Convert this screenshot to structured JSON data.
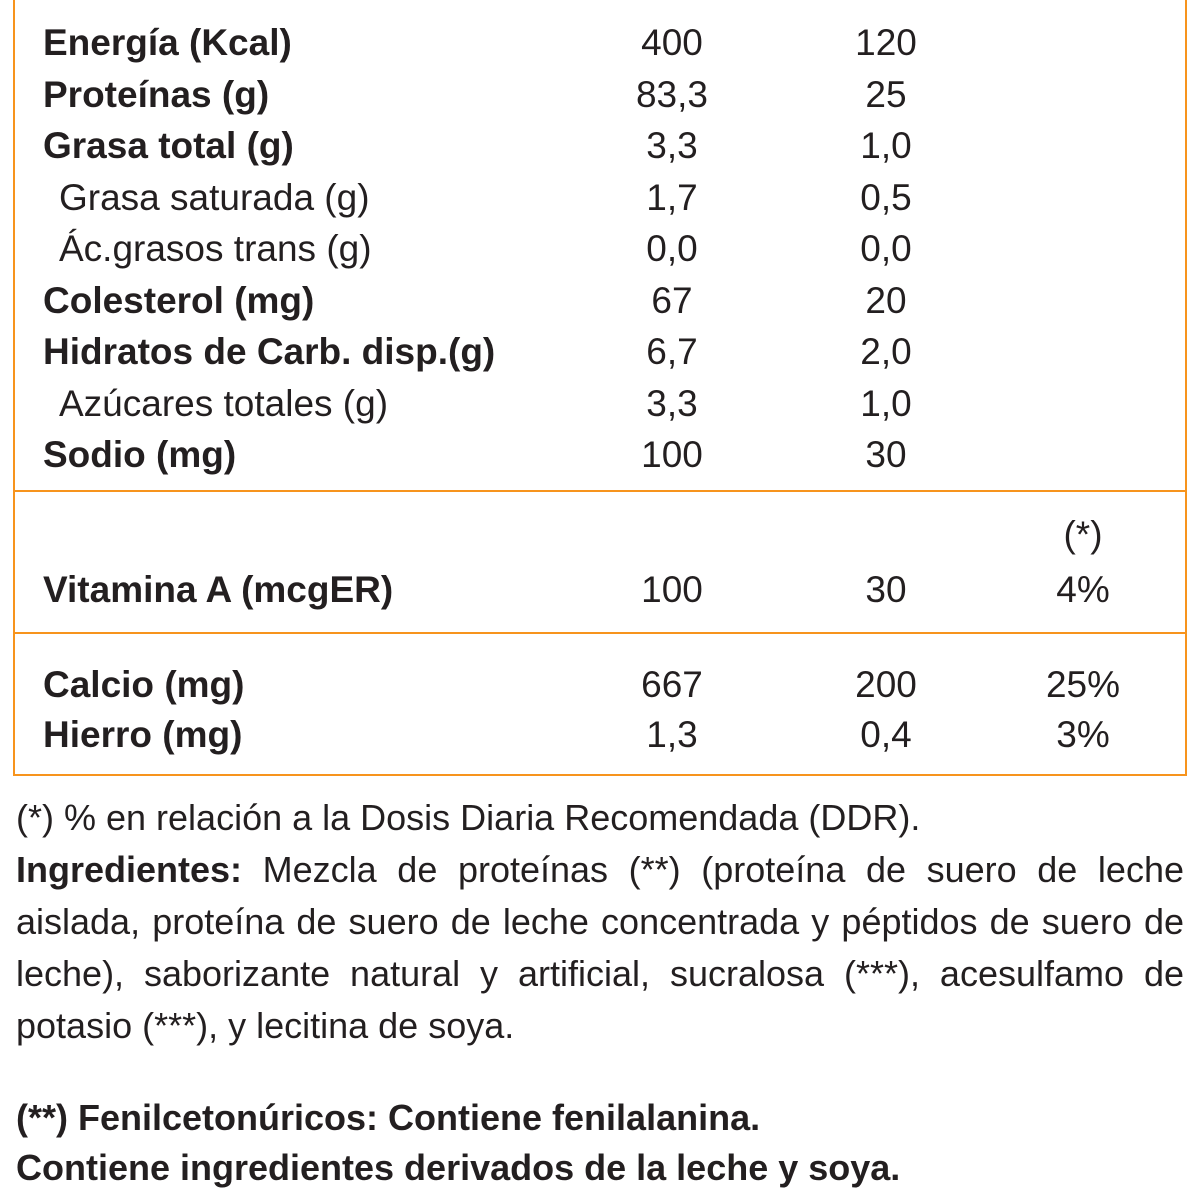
{
  "table": {
    "main_rows": [
      {
        "label": "Energía (Kcal)",
        "v1": "400",
        "v2": "120",
        "bold": true
      },
      {
        "label": "Proteínas (g)",
        "v1": "83,3",
        "v2": "25",
        "bold": true
      },
      {
        "label": "Grasa total (g)",
        "v1": "3,3",
        "v2": "1,0",
        "bold": true
      },
      {
        "label": "Grasa saturada (g)",
        "v1": "1,7",
        "v2": "0,5",
        "bold": false
      },
      {
        "label": "Ác.grasos trans (g)",
        "v1": "0,0",
        "v2": "0,0",
        "bold": false
      },
      {
        "label": "Colesterol (mg)",
        "v1": "67",
        "v2": "20",
        "bold": true
      },
      {
        "label": "Hidratos de Carb. disp.(g)",
        "v1": "6,7",
        "v2": "2,0",
        "bold": true
      },
      {
        "label": "Azúcares totales (g)",
        "v1": "3,3",
        "v2": "1,0",
        "bold": false
      },
      {
        "label": "Sodio (mg)",
        "v1": "100",
        "v2": "30",
        "bold": true
      }
    ],
    "ddr_header": "(*)",
    "vitamin_row": {
      "label": "Vitamina A (mcgER)",
      "v1": "100",
      "v2": "30",
      "v3": "4%"
    },
    "mineral_rows": [
      {
        "label": "Calcio (mg)",
        "v1": "667",
        "v2": "200",
        "v3": "25%"
      },
      {
        "label": "Hierro (mg)",
        "v1": "1,3",
        "v2": "0,4",
        "v3": "3%"
      }
    ]
  },
  "footnote": "(*) % en relación a la Dosis Diaria Recomendada (DDR).",
  "ingredients": {
    "label": "Ingredientes:",
    "text": " Mezcla de proteínas (**) (proteína de suero de leche aislada, proteína de suero de leche  concentrada y péptidos de suero de leche), saborizante natural y artificial, sucralosa (***), acesulfamo de potasio (***), y lecitina de soya."
  },
  "warnings": [
    "(**) Fenilcetonúricos: Contiene fenilalanina.",
    "Contiene ingredientes derivados de la leche y soya."
  ],
  "colors": {
    "border": "#f7941d",
    "text": "#231f20"
  }
}
